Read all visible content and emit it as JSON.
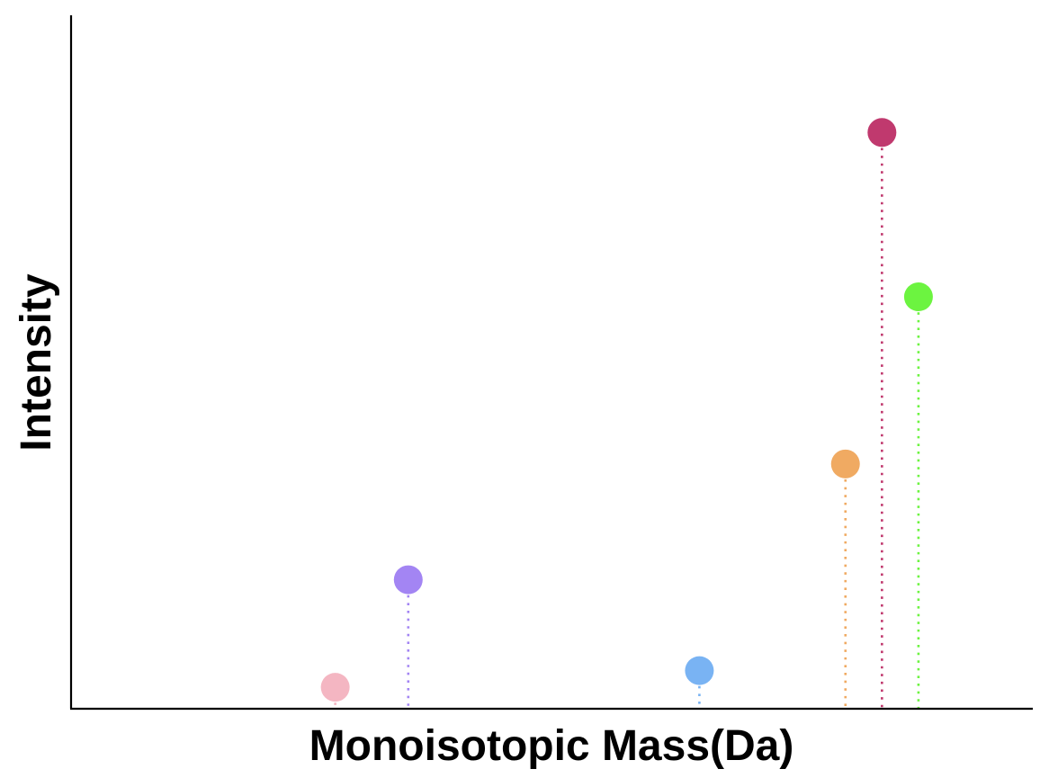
{
  "chart_data": {
    "type": "scatter",
    "style": "lollipop",
    "title": "",
    "xlabel": "Monoisotopic Mass(Da)",
    "ylabel": "Intensity",
    "x_ticks_shown": false,
    "y_ticks_shown": false,
    "grid": false,
    "legend": "none",
    "xlim": [
      0,
      100
    ],
    "ylim": [
      0,
      100
    ],
    "points": [
      {
        "x": 27.4,
        "y": 3.1,
        "color": "#f4b6c2"
      },
      {
        "x": 35.0,
        "y": 18.6,
        "color": "#a385f3"
      },
      {
        "x": 65.3,
        "y": 5.5,
        "color": "#79b3f3"
      },
      {
        "x": 80.5,
        "y": 35.3,
        "color": "#f0aa62"
      },
      {
        "x": 84.3,
        "y": 83.1,
        "color": "#c0396e"
      },
      {
        "x": 88.1,
        "y": 59.4,
        "color": "#6cf440"
      }
    ]
  }
}
